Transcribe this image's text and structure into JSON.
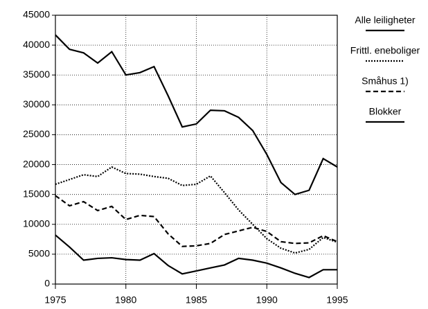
{
  "chart_data": {
    "type": "line",
    "x": [
      1975,
      1976,
      1977,
      1978,
      1979,
      1980,
      1981,
      1982,
      1983,
      1984,
      1985,
      1986,
      1987,
      1988,
      1989,
      1990,
      1991,
      1992,
      1993,
      1994,
      1995
    ],
    "series": [
      {
        "name": "Alle leiligheter",
        "color": "#000000",
        "dash": "solid",
        "width": 2.2,
        "values": [
          41700,
          39300,
          38700,
          37000,
          38900,
          35000,
          35400,
          36400,
          31500,
          26300,
          26800,
          29100,
          29000,
          27900,
          25700,
          21700,
          17000,
          15000,
          15700,
          21000,
          19600
        ]
      },
      {
        "name": "Frittl. eneboliger",
        "color": "#000000",
        "dash": "dotted",
        "width": 2.2,
        "values": [
          16700,
          17500,
          18300,
          18000,
          19600,
          18500,
          18400,
          18000,
          17700,
          16500,
          16700,
          18100,
          15300,
          12400,
          10000,
          7600,
          6000,
          5200,
          5800,
          7800,
          7000
        ]
      },
      {
        "name": "Småhus 1)",
        "color": "#000000",
        "dash": "dashed",
        "width": 2.2,
        "values": [
          14800,
          13100,
          13800,
          12300,
          13000,
          10800,
          11500,
          11300,
          8400,
          6300,
          6400,
          6800,
          8300,
          8900,
          9500,
          8800,
          7100,
          6800,
          6900,
          8100,
          7100
        ]
      },
      {
        "name": "Blokker",
        "color": "#000000",
        "dash": "solid",
        "width": 2.2,
        "values": [
          8200,
          6200,
          4000,
          4300,
          4400,
          4100,
          4000,
          5100,
          3100,
          1700,
          2200,
          2700,
          3200,
          4300,
          4000,
          3500,
          2700,
          1800,
          1100,
          2400,
          2400
        ]
      }
    ],
    "xlim": [
      1975,
      1995
    ],
    "xticks": [
      1975,
      1980,
      1985,
      1990,
      1995
    ],
    "ylim": [
      0,
      45000
    ],
    "yticks": [
      0,
      5000,
      10000,
      15000,
      20000,
      25000,
      30000,
      35000,
      40000,
      45000
    ],
    "grid": true
  }
}
